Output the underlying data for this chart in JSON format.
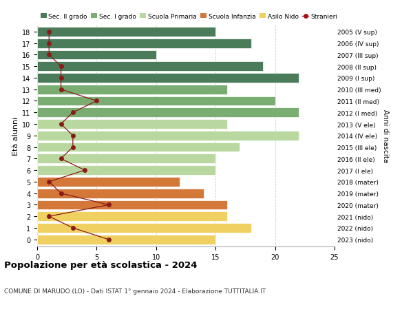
{
  "ages": [
    18,
    17,
    16,
    15,
    14,
    13,
    12,
    11,
    10,
    9,
    8,
    7,
    6,
    5,
    4,
    3,
    2,
    1,
    0
  ],
  "right_labels": [
    "2005 (V sup)",
    "2006 (IV sup)",
    "2007 (III sup)",
    "2008 (II sup)",
    "2009 (I sup)",
    "2010 (III med)",
    "2011 (II med)",
    "2012 (I med)",
    "2013 (V ele)",
    "2014 (IV ele)",
    "2015 (III ele)",
    "2016 (II ele)",
    "2017 (I ele)",
    "2018 (mater)",
    "2019 (mater)",
    "2020 (mater)",
    "2021 (nido)",
    "2022 (nido)",
    "2023 (nido)"
  ],
  "bar_values": [
    15,
    18,
    10,
    19,
    22,
    16,
    20,
    22,
    16,
    22,
    17,
    15,
    15,
    12,
    14,
    16,
    16,
    18,
    15
  ],
  "bar_colors": [
    "#4a7c59",
    "#4a7c59",
    "#4a7c59",
    "#4a7c59",
    "#4a7c59",
    "#7aad72",
    "#7aad72",
    "#7aad72",
    "#b8d8a0",
    "#b8d8a0",
    "#b8d8a0",
    "#b8d8a0",
    "#b8d8a0",
    "#d4783a",
    "#d4783a",
    "#d4783a",
    "#f0d060",
    "#f0d060",
    "#f0d060"
  ],
  "stranieri_values": [
    1,
    1,
    1,
    2,
    2,
    2,
    5,
    3,
    2,
    3,
    3,
    2,
    4,
    1,
    2,
    6,
    1,
    3,
    6
  ],
  "legend_labels": [
    "Sec. II grado",
    "Sec. I grado",
    "Scuola Primaria",
    "Scuola Infanzia",
    "Asilo Nido",
    "Stranieri"
  ],
  "legend_colors": [
    "#4a7c59",
    "#7aad72",
    "#b8d8a0",
    "#d4783a",
    "#f0d060",
    "#aa1111"
  ],
  "ylabel": "Età alunni",
  "right_ylabel": "Anni di nascita",
  "title": "Popolazione per età scolastica - 2024",
  "subtitle": "COMUNE DI MARUDO (LO) - Dati ISTAT 1° gennaio 2024 - Elaborazione TUTTITALIA.IT",
  "xlim": [
    0,
    25
  ],
  "background_color": "#ffffff",
  "grid_color": "#cccccc"
}
